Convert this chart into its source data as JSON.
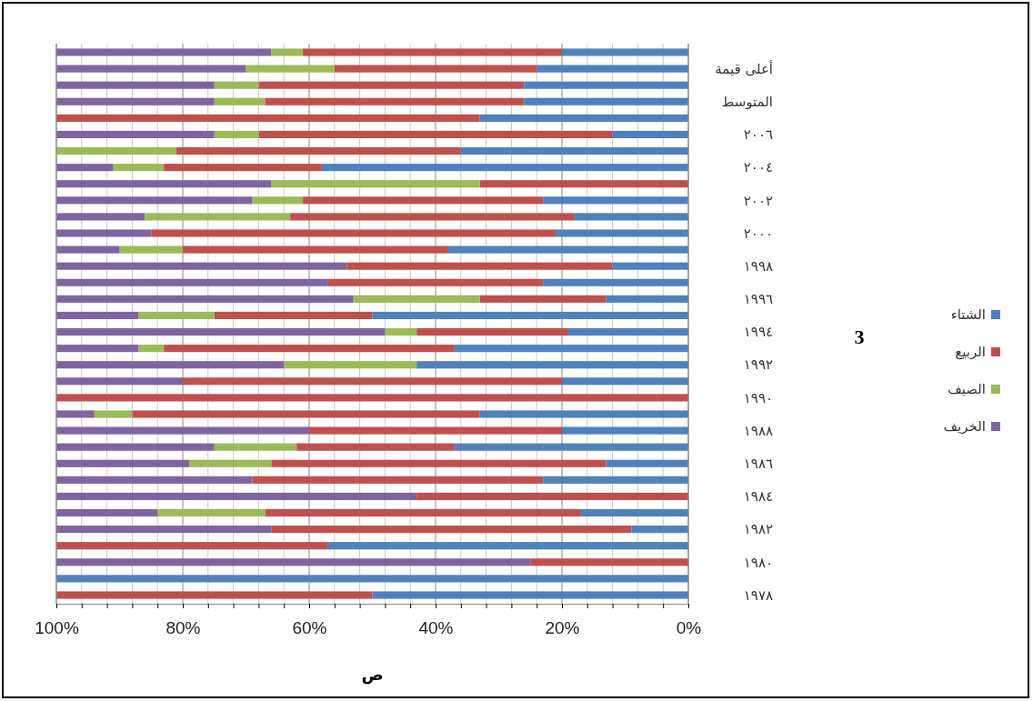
{
  "chart_data": {
    "type": "bar",
    "orientation": "horizontal",
    "stacked": true,
    "xlabel": "ص",
    "categories": [
      null,
      "أعلى قيمة",
      null,
      "المتوسط",
      null,
      "٢٠٠٦",
      null,
      "٢٠٠٤",
      null,
      "٢٠٠٢",
      null,
      "٢٠٠٠",
      null,
      "١٩٩٨",
      null,
      "١٩٩٦",
      null,
      "١٩٩٤",
      null,
      "١٩٩٢",
      null,
      "١٩٩٠",
      null,
      "١٩٨٨",
      null,
      "١٩٨٦",
      null,
      "١٩٨٤",
      null,
      "١٩٨٢",
      null,
      "١٩٨٠",
      null,
      "١٩٧٨"
    ],
    "series": [
      {
        "name": "الشتاء",
        "color": "#4f81bd",
        "values": [
          20,
          24,
          26,
          26,
          33,
          12,
          36,
          58,
          0,
          23,
          18,
          21,
          38,
          12,
          23,
          13,
          50,
          19,
          37,
          43,
          20,
          0,
          33,
          20,
          37,
          13,
          23,
          0,
          17,
          9,
          57,
          0,
          100,
          50
        ]
      },
      {
        "name": "الربيع",
        "color": "#c0504d",
        "values": [
          41,
          32,
          42,
          41,
          67,
          56,
          45,
          25,
          33,
          38,
          45,
          64,
          42,
          42,
          34,
          20,
          25,
          24,
          46,
          0,
          60,
          100,
          55,
          40,
          25,
          53,
          46,
          43,
          50,
          57,
          43,
          25,
          0,
          50
        ]
      },
      {
        "name": "الصيف",
        "color": "#9bbb59",
        "values": [
          5,
          14,
          7,
          8,
          0,
          7,
          19,
          8,
          33,
          8,
          23,
          0,
          10,
          0,
          0,
          20,
          12,
          5,
          4,
          21,
          0,
          0,
          6,
          0,
          13,
          13,
          0,
          0,
          17,
          0,
          0,
          0,
          0,
          0
        ]
      },
      {
        "name": "الخريف",
        "color": "#8064a2",
        "values": [
          34,
          30,
          25,
          25,
          0,
          25,
          0,
          9,
          34,
          31,
          14,
          15,
          10,
          46,
          43,
          47,
          13,
          52,
          13,
          36,
          20,
          0,
          6,
          40,
          25,
          21,
          31,
          57,
          16,
          34,
          0,
          75,
          0,
          0
        ]
      }
    ],
    "xlim": [
      100,
      0
    ],
    "xticks": [
      {
        "value": 100,
        "label": "100%"
      },
      {
        "value": 96,
        "label": null
      },
      {
        "value": 92,
        "label": null
      },
      {
        "value": 88,
        "label": null
      },
      {
        "value": 84,
        "label": null
      },
      {
        "value": 80,
        "label": "80%"
      },
      {
        "value": 76,
        "label": null
      },
      {
        "value": 72,
        "label": null
      },
      {
        "value": 68,
        "label": null
      },
      {
        "value": 64,
        "label": null
      },
      {
        "value": 60,
        "label": "60%"
      },
      {
        "value": 56,
        "label": null
      },
      {
        "value": 52,
        "label": null
      },
      {
        "value": 48,
        "label": null
      },
      {
        "value": 44,
        "label": null
      },
      {
        "value": 40,
        "label": "40%"
      },
      {
        "value": 36,
        "label": null
      },
      {
        "value": 32,
        "label": null
      },
      {
        "value": 28,
        "label": null
      },
      {
        "value": 24,
        "label": null
      },
      {
        "value": 20,
        "label": "20%"
      },
      {
        "value": 16,
        "label": null
      },
      {
        "value": 12,
        "label": null
      },
      {
        "value": 8,
        "label": null
      },
      {
        "value": 4,
        "label": null
      },
      {
        "value": 0,
        "label": "0%"
      }
    ],
    "grid": "x",
    "legend": "right",
    "annotations": [
      "3"
    ]
  }
}
